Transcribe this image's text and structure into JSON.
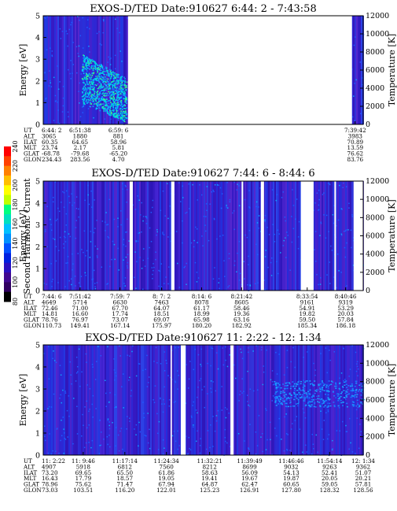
{
  "colorbar": {
    "label": "Second Harmonic Current",
    "ticks": [
      "240",
      "220",
      "200",
      "180",
      "160",
      "140",
      "120",
      "100",
      "80"
    ],
    "colors": [
      "#ff0000",
      "#ff4000",
      "#ff8000",
      "#ffbf00",
      "#ffff00",
      "#c0ff00",
      "#00ff80",
      "#00e0c0",
      "#00c0ff",
      "#0090ff",
      "#0050ff",
      "#0020e0",
      "#2810c0",
      "#400890",
      "#300060",
      "#000000"
    ]
  },
  "panels": [
    {
      "title": "EXOS-D/TED   Date:910627  6:44: 2 - 7:43:58",
      "ylabel": "Energy [eV]",
      "y2label": "Temperature [K]",
      "ylim": [
        0,
        5
      ],
      "y2lim": [
        0,
        12000
      ],
      "yticks": [
        "0",
        "1",
        "2",
        "3",
        "4",
        "5"
      ],
      "y2ticks": [
        "0",
        "2000",
        "4000",
        "6000",
        "8000",
        "10000",
        "12000"
      ],
      "gaps": [
        [
          0.265,
          0.965
        ]
      ],
      "blob": {
        "x0": 0.12,
        "x1": 0.26,
        "ylo": 1.0,
        "yhi": 3.3
      },
      "info_labels": [
        "UT",
        "ALT",
        "ILAT",
        "MLT",
        "GLAT",
        "GLON"
      ],
      "info_columns": [
        {
          "x": 0.0,
          "values": [
            "6:44: 2",
            "3065",
            "60.35",
            "23.74",
            "-68.78",
            "234.43"
          ]
        },
        {
          "x": 0.115,
          "values": [
            "6:51:38",
            "1880",
            "64.65",
            "2.17",
            "-79.68",
            "283.56"
          ]
        },
        {
          "x": 0.235,
          "values": [
            "6:59: 6",
            "881",
            "58.96",
            "5.81",
            "-65.20",
            "4.70"
          ]
        },
        {
          "x": 0.975,
          "values": [
            "7:39:42",
            "3983",
            "70.89",
            "13.59",
            "76.62",
            "83.76"
          ]
        }
      ]
    },
    {
      "title": "EXOS-D/TED   Date:910627  7:44: 6 - 8:44: 6",
      "ylabel": "Energy [eV]",
      "y2label": "Temperature [K]",
      "ylim": [
        0,
        5
      ],
      "y2lim": [
        0,
        12000
      ],
      "yticks": [
        "0",
        "1",
        "2",
        "3",
        "4",
        "5"
      ],
      "y2ticks": [
        "0",
        "2000",
        "4000",
        "6000",
        "8000",
        "10000",
        "12000"
      ],
      "gaps": [
        [
          0.27,
          0.28
        ],
        [
          0.4,
          0.41
        ],
        [
          0.805,
          0.845
        ],
        [
          0.91,
          0.915
        ],
        [
          0.97,
          1.0
        ],
        [
          0.62,
          0.625
        ],
        [
          0.68,
          0.69
        ]
      ],
      "blob": null,
      "info_labels": [
        "UT",
        "ALT",
        "ILAT",
        "MLT",
        "GLAT",
        "GLON"
      ],
      "info_columns": [
        {
          "x": 0.0,
          "values": [
            "7:44: 6",
            "4649",
            "72.46",
            "14.81",
            "78.76",
            "110.73"
          ]
        },
        {
          "x": 0.115,
          "values": [
            "7:51:42",
            "5714",
            "71.00",
            "16.60",
            "76.97",
            "149.41"
          ]
        },
        {
          "x": 0.24,
          "values": [
            "7:59: 7",
            "6630",
            "67.70",
            "17.74",
            "73.07",
            "167.14"
          ]
        },
        {
          "x": 0.37,
          "values": [
            "8: 7: 2",
            "7463",
            "64.07",
            "18.51",
            "69.07",
            "175.97"
          ]
        },
        {
          "x": 0.495,
          "values": [
            "8:14: 6",
            "8078",
            "61.17",
            "18.99",
            "65.98",
            "180.20"
          ]
        },
        {
          "x": 0.62,
          "values": [
            "8:21:42",
            "8605",
            "58.46",
            "19.36",
            "63.16",
            "182.92"
          ]
        },
        {
          "x": 0.825,
          "values": [
            "8:33:54",
            "9161",
            "54.91",
            "19.82",
            "59.50",
            "185.34"
          ]
        },
        {
          "x": 0.945,
          "values": [
            "8:40:46",
            "9319",
            "53.29",
            "20.03",
            "57.84",
            "186.18"
          ]
        }
      ]
    },
    {
      "title": "EXOS-D/TED   Date:910627  11: 2:22 - 12: 1:34",
      "ylabel": "Energy [eV]",
      "y2label": "Temperature [K]",
      "ylim": [
        0,
        5
      ],
      "y2lim": [
        0,
        12000
      ],
      "yticks": [
        "0",
        "1",
        "2",
        "3",
        "4",
        "5"
      ],
      "y2ticks": [
        "0",
        "2000",
        "4000",
        "6000",
        "8000",
        "10000",
        "12000"
      ],
      "gaps": [
        [
          0.43,
          0.445
        ],
        [
          0.585,
          0.595
        ],
        [
          0.398,
          0.402
        ]
      ],
      "blob": null,
      "info_labels": [
        "UT",
        "ALT",
        "ILAT",
        "MLT",
        "GLAT",
        "GLON"
      ],
      "info_columns": [
        {
          "x": 0.0,
          "values": [
            "11: 2:22",
            "4907",
            "73.20",
            "16.43",
            "78.96",
            "73.03"
          ]
        },
        {
          "x": 0.125,
          "values": [
            "11: 9:46",
            "5918",
            "69.65",
            "17.79",
            "75.62",
            "103.51"
          ]
        },
        {
          "x": 0.255,
          "values": [
            "11:17:14",
            "6812",
            "65.50",
            "18.57",
            "71.47",
            "116.20"
          ]
        },
        {
          "x": 0.385,
          "values": [
            "11:24:34",
            "7560",
            "61.86",
            "19.05",
            "67.94",
            "122.01"
          ]
        },
        {
          "x": 0.52,
          "values": [
            "11:32:21",
            "8212",
            "58.63",
            "19.41",
            "64.87",
            "125.23"
          ]
        },
        {
          "x": 0.645,
          "values": [
            "11:39:49",
            "8699",
            "56.09",
            "19.67",
            "62.47",
            "126.91"
          ]
        },
        {
          "x": 0.775,
          "values": [
            "11:46:46",
            "9032",
            "54.13",
            "19.87",
            "60.65",
            "127.80"
          ]
        },
        {
          "x": 0.895,
          "values": [
            "11:54:14",
            "9263",
            "52.41",
            "20.05",
            "59.05",
            "128.32"
          ]
        },
        {
          "x": 1.0,
          "values": [
            "12: 1:34",
            "9362",
            "51.07",
            "20.21",
            "57.81",
            "128.56"
          ]
        }
      ]
    }
  ],
  "chart_data": [
    {
      "type": "heatmap",
      "title": "EXOS-D/TED   Date:910627  6:44: 2 - 7:43:58",
      "xlabel": "UT",
      "ylabel": "Energy [eV]",
      "y2label": "Temperature [K]",
      "ylim": [
        0,
        5
      ],
      "y2lim": [
        0,
        12000
      ],
      "x_ticks": [
        "6:44: 2",
        "6:51:38",
        "6:59: 6",
        "7:39:42"
      ]
    },
    {
      "type": "heatmap",
      "title": "EXOS-D/TED   Date:910627  7:44: 6 - 8:44: 6",
      "xlabel": "UT",
      "ylabel": "Energy [eV]",
      "y2label": "Temperature [K]",
      "ylim": [
        0,
        5
      ],
      "y2lim": [
        0,
        12000
      ],
      "x_ticks": [
        "7:44: 6",
        "7:51:42",
        "7:59: 7",
        "8: 7: 2",
        "8:14: 6",
        "8:21:42",
        "8:33:54",
        "8:40:46"
      ]
    },
    {
      "type": "heatmap",
      "title": "EXOS-D/TED   Date:910627  11: 2:22 - 12: 1:34",
      "xlabel": "UT",
      "ylabel": "Energy [eV]",
      "y2label": "Temperature [K]",
      "ylim": [
        0,
        5
      ],
      "y2lim": [
        0,
        12000
      ],
      "x_ticks": [
        "11: 2:22",
        "11: 9:46",
        "11:17:14",
        "11:24:34",
        "11:32:21",
        "11:39:49",
        "11:46:46",
        "11:54:14",
        "12: 1:34"
      ]
    }
  ]
}
